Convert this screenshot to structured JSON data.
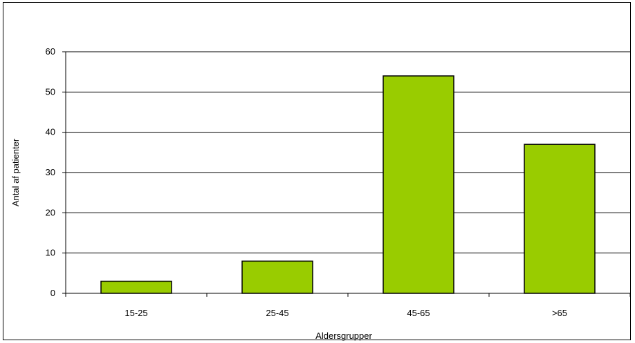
{
  "chart_data": {
    "type": "bar",
    "categories": [
      "15-25",
      "25-45",
      "45-65",
      ">65"
    ],
    "values": [
      3,
      8,
      54,
      37
    ],
    "xlabel": "Aldersgrupper",
    "ylabel": "Antal af patienter",
    "ylim": [
      0,
      60
    ],
    "yticks": [
      0,
      10,
      20,
      30,
      40,
      50,
      60
    ],
    "grid": true,
    "legend": "none",
    "bar_color": "#99CC00",
    "bar_edge_color": "#000000"
  }
}
